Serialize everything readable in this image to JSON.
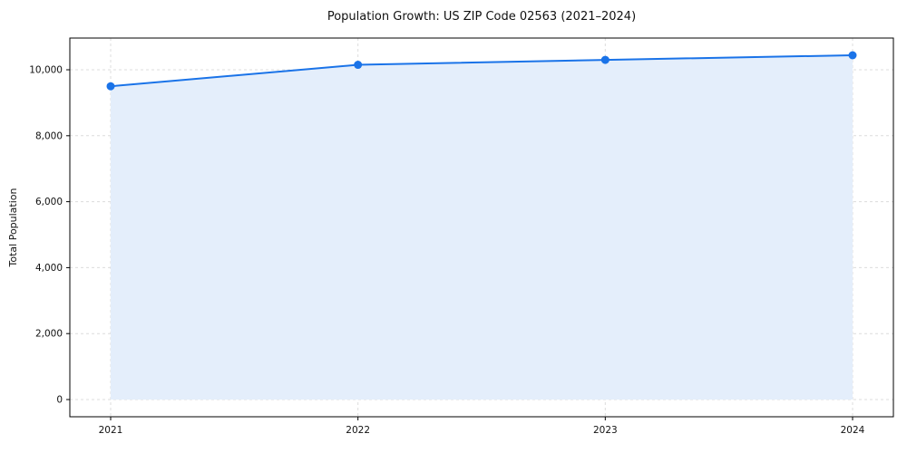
{
  "chart_data": {
    "type": "area",
    "title": "Population Growth: US ZIP Code 02563 (2021–2024)",
    "ylabel": "Total Population",
    "xlabel": "",
    "categories": [
      "2021",
      "2022",
      "2023",
      "2024"
    ],
    "series": [
      {
        "name": "Total Population",
        "values": [
          9500,
          10150,
          10300,
          10440
        ]
      }
    ],
    "yticks": [
      0,
      2000,
      4000,
      6000,
      8000,
      10000
    ],
    "ytick_labels": [
      "0",
      "2,000",
      "4,000",
      "6,000",
      "8,000",
      "10,000"
    ],
    "ylim": [
      0,
      10960
    ],
    "grid": true,
    "grid_style": "dashed",
    "legend_position": "none",
    "colors": {
      "line": "#1a73e8",
      "marker": "#1a73e8",
      "fill": "#e4eefb",
      "grid": "#dcdcdc",
      "axis": "#000000",
      "background": "#ffffff"
    }
  }
}
